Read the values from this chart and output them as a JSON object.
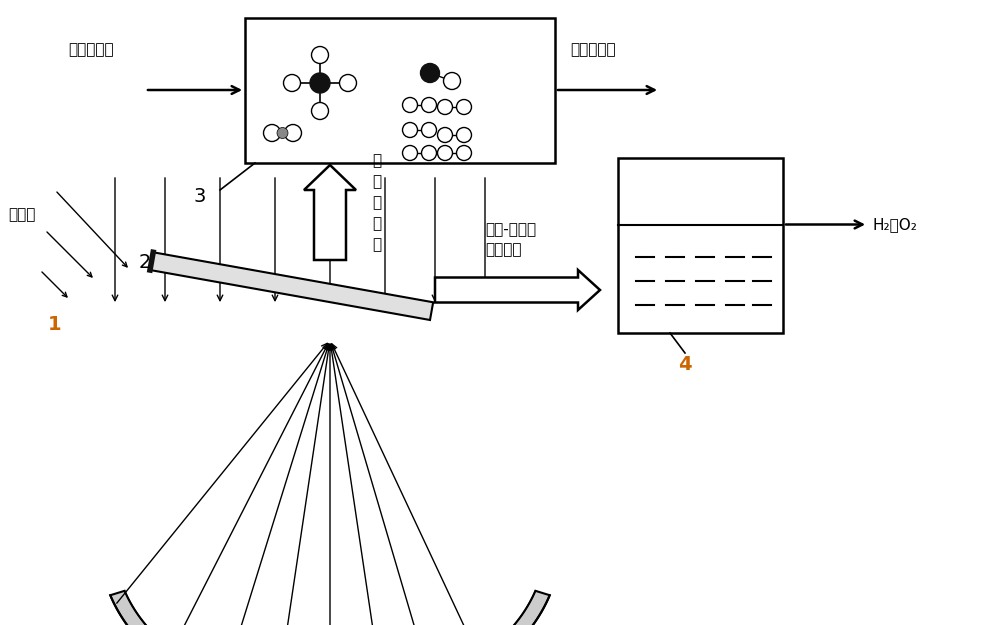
{
  "bg_color": "#ffffff",
  "line_color": "#000000",
  "gray_color": "#888888",
  "dark_gray": "#444444",
  "orange_color": "#CC6600",
  "light_gray": "#cccccc",
  "labels": {
    "raw_material": "甲醇等原料",
    "syngas_output": "合成气输出",
    "infrared": "红\n外\n光\n波\n段",
    "uv_visible": "紫外-部分可\n见光波段",
    "sunlight": "太阳光",
    "h2_o2": "H₂、O₂",
    "num1": "1",
    "num2": "2",
    "num3": "3",
    "num4": "4"
  },
  "figsize": [
    10.0,
    6.25
  ],
  "dpi": 100
}
